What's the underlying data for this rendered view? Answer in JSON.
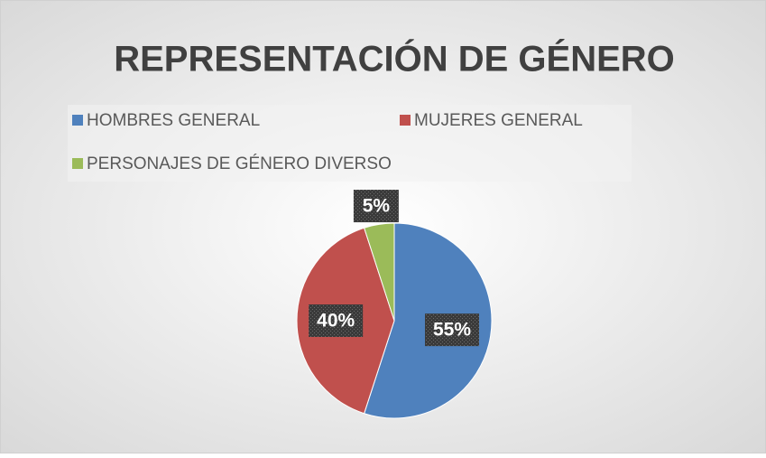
{
  "chart_data": {
    "type": "pie",
    "title": "REPRESENTACIÓN DE GÉNERO",
    "categories": [
      "HOMBRES GENERAL",
      "MUJERES GENERAL",
      "PERSONAJES DE GÉNERO DIVERSO"
    ],
    "values": [
      55,
      40,
      5
    ],
    "value_labels": [
      "55%",
      "40%",
      "5%"
    ],
    "colors": [
      "#4f81bd",
      "#c0504d",
      "#9bbb59"
    ],
    "legend": "top"
  }
}
